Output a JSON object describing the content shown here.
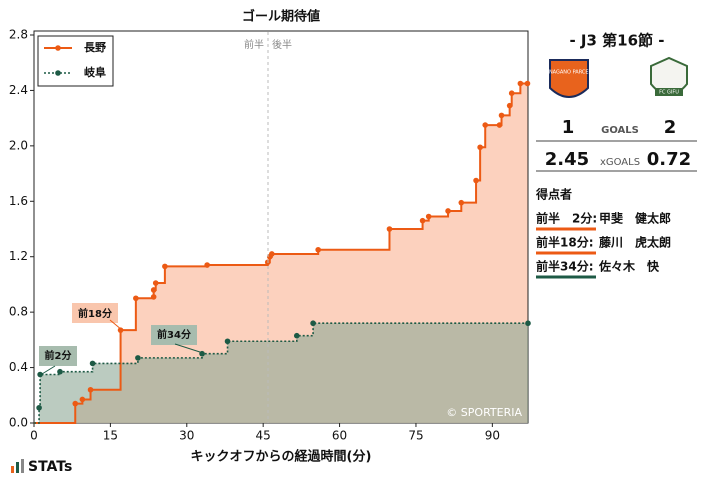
{
  "chart_data": {
    "type": "line",
    "title": "ゴール期待値",
    "x_label": "キックオフからの経過時間(分)",
    "half_labels": [
      "前半",
      "後半"
    ],
    "watermark": "© SPORTERIA",
    "xlim": [
      0,
      97
    ],
    "xticks": [
      0,
      15,
      30,
      45,
      60,
      75,
      90
    ],
    "ylim": [
      0,
      2.8
    ],
    "yticks": [
      {
        "value": 0,
        "label": "0.0"
      },
      {
        "value": 0.4,
        "label": "0.4"
      },
      {
        "value": 0.8,
        "label": "0.8"
      },
      {
        "value": 1.2,
        "label": "1.2"
      },
      {
        "value": 1.6,
        "label": "1.6"
      },
      {
        "value": 2.0,
        "label": "2.0"
      },
      {
        "value": 2.4,
        "label": "2.4"
      },
      {
        "value": 2.8,
        "label": "2.8"
      }
    ],
    "legend": "upper left",
    "series": [
      {
        "name": "長野",
        "color": "#ec5a14",
        "area": "#fbc9b3",
        "dash": false,
        "x": [
          0,
          8.1,
          9.5,
          11.1,
          17.0,
          20.0,
          23.5,
          23.5,
          23.9,
          25.7,
          34.0,
          45.9,
          46.3,
          46.7,
          55.8,
          69.8,
          76.3,
          77.5,
          81.3,
          83.9,
          86.8,
          87.6,
          88.6,
          91.4,
          91.8,
          93.4,
          93.8,
          95.5,
          96.9
        ],
        "values": [
          0,
          0.14,
          0.17,
          0.24,
          0.67,
          0.9,
          0.91,
          0.96,
          1.01,
          1.13,
          1.14,
          1.16,
          1.2,
          1.22,
          1.25,
          1.4,
          1.46,
          1.49,
          1.53,
          1.59,
          1.75,
          1.99,
          2.15,
          2.15,
          2.22,
          2.29,
          2.38,
          2.45,
          2.45
        ]
      },
      {
        "name": "岐阜",
        "color": "#1d5a45",
        "area": "#8ea996",
        "dash": true,
        "x": [
          0,
          1.0,
          1.2,
          5.1,
          11.5,
          20.4,
          33.0,
          38.0,
          51.6,
          54.8,
          97
        ],
        "values": [
          0,
          0.11,
          0.35,
          0.37,
          0.43,
          0.47,
          0.5,
          0.59,
          0.63,
          0.72,
          0.72
        ]
      }
    ],
    "annotations": [
      "前18分",
      "前2分",
      "前34分"
    ]
  },
  "match": {
    "round": "- J3 第16節 -",
    "home_goals": "1",
    "goals_label": "GOALS",
    "away_goals": "2",
    "home_xg": "2.45",
    "xg_label": "xGOALS",
    "away_xg": "0.72",
    "scorers_title": "得点者",
    "scorers": [
      {
        "time": "前半　2分:",
        "name": "甲斐　健太郎"
      },
      {
        "time": "前半18分:",
        "name": "藤川　虎太朗"
      },
      {
        "time": "前半34分:",
        "name": "佐々木　快"
      }
    ],
    "logo_home": "AC NAGANO PARCEIRO",
    "logo_away": "FC GIFU",
    "brand": "STATs"
  }
}
